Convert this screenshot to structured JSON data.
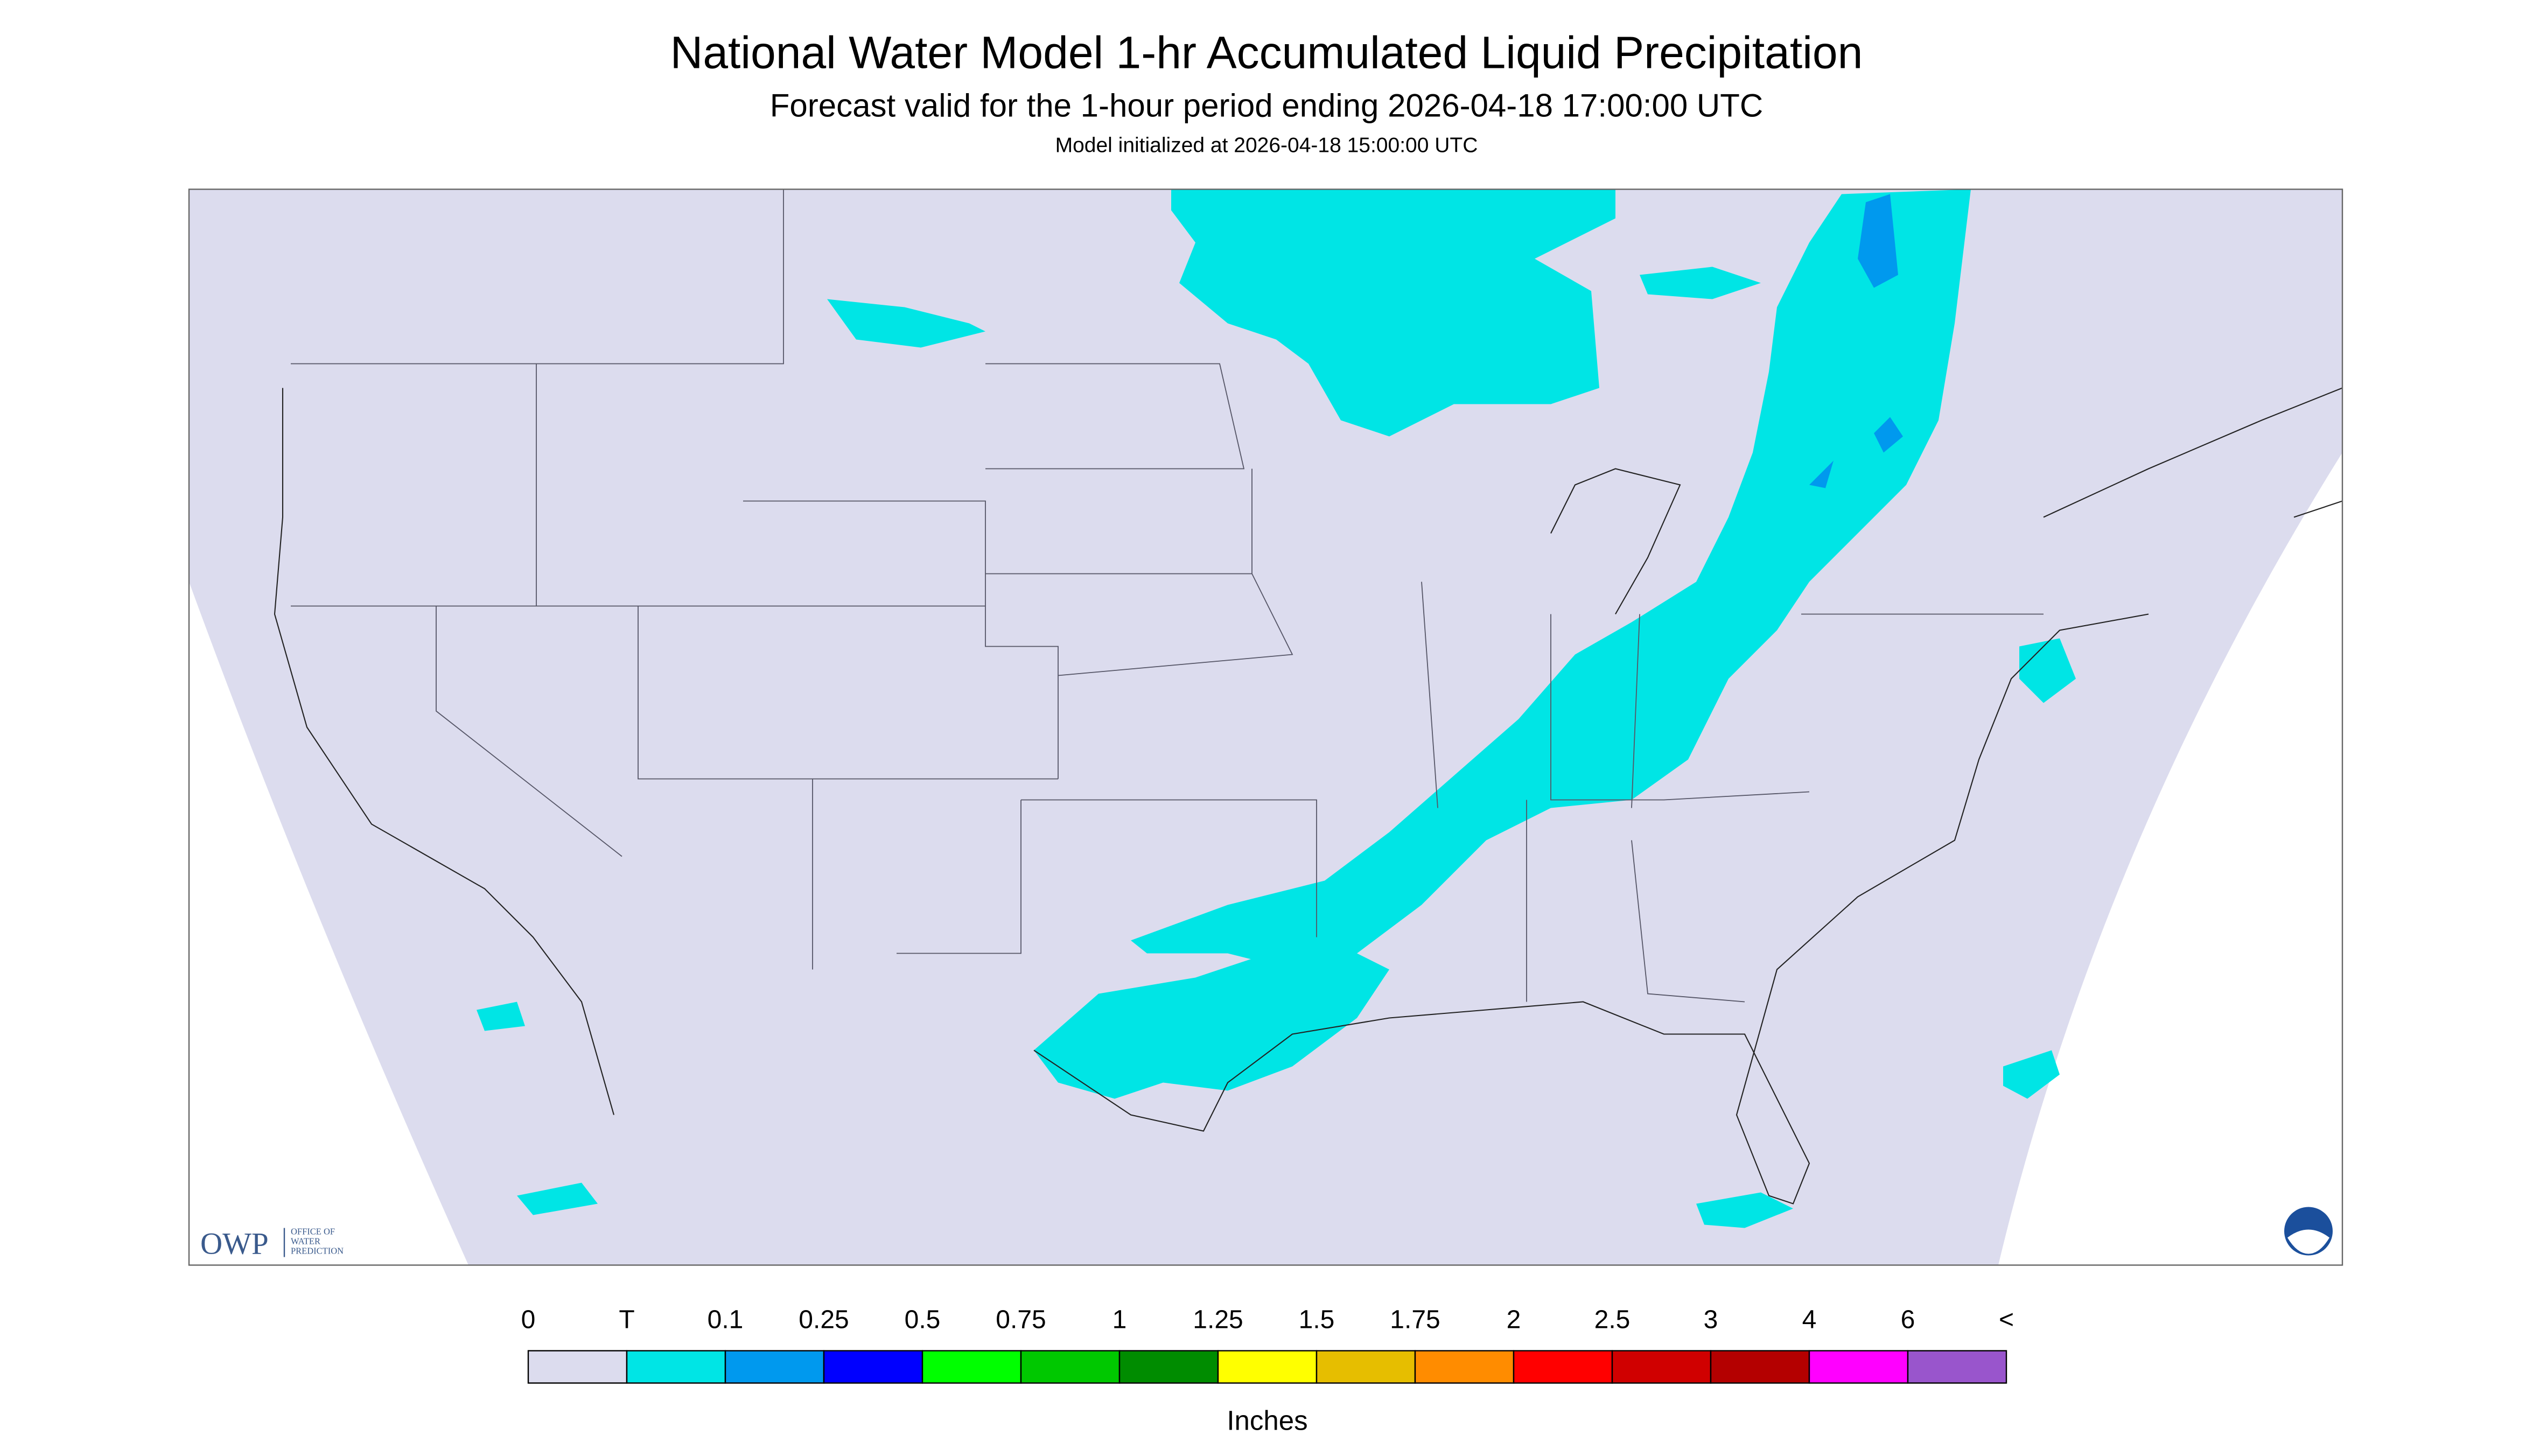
{
  "header": {
    "title": "National Water Model 1-hr Accumulated Liquid Precipitation",
    "subtitle": "Forecast valid for the 1-hour period ending 2026-04-18 17:00:00 UTC",
    "note": "Model initialized at 2026-04-18 15:00:00 UTC"
  },
  "legend": {
    "labels": [
      "0",
      "T",
      "0.1",
      "0.25",
      "0.5",
      "0.75",
      "1",
      "1.25",
      "1.5",
      "1.75",
      "2",
      "2.5",
      "3",
      "4",
      "6",
      "<"
    ],
    "colors": [
      "#dcdcee",
      "#00e5e5",
      "#0099ee",
      "#0000ff",
      "#00ff00",
      "#00c800",
      "#008c00",
      "#ffff00",
      "#e6be00",
      "#ff8c00",
      "#ff0000",
      "#d00000",
      "#b40000",
      "#ff00ff",
      "#9955cc"
    ],
    "unit": "Inches"
  },
  "logo": {
    "abbr": "OWP",
    "lines": [
      "OFFICE OF",
      "WATER",
      "PREDICTION"
    ]
  }
}
